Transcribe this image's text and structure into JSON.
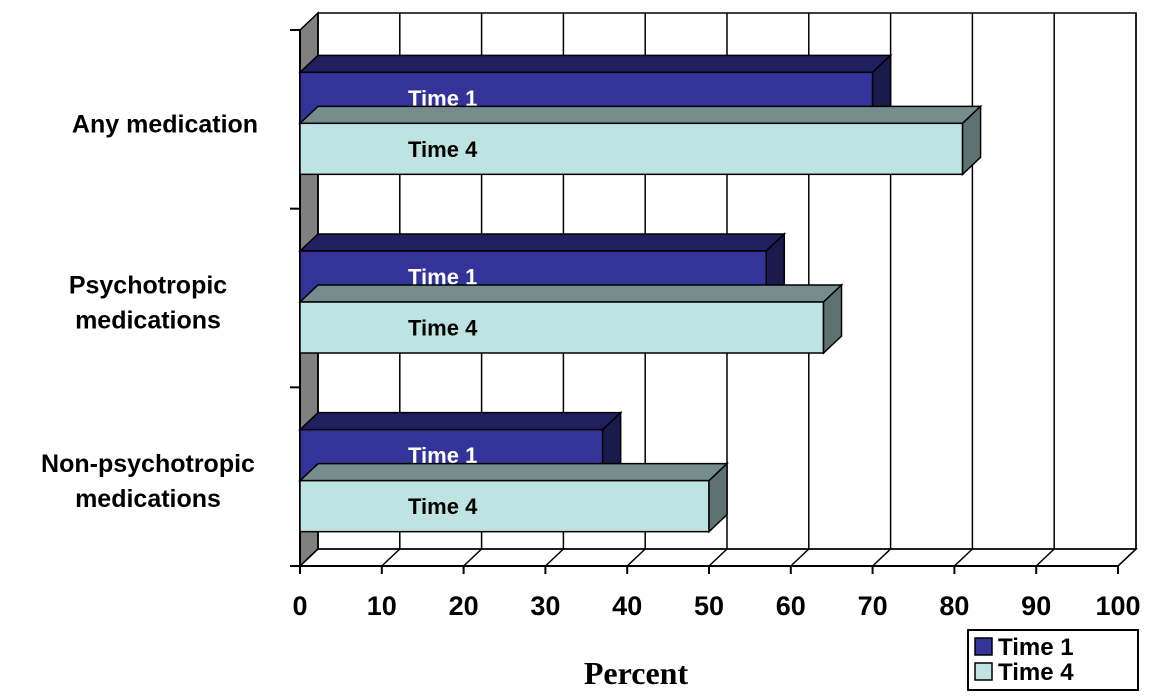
{
  "chart_data": {
    "type": "bar",
    "orientation": "horizontal",
    "style": "3d",
    "categories": [
      "Any medication",
      "Psychotropic\nmedications",
      "Non-psychotropic\nmedications"
    ],
    "series": [
      {
        "name": "Time 1",
        "values": [
          70,
          57,
          37
        ],
        "color": "#333399"
      },
      {
        "name": "Time 4",
        "values": [
          81,
          64,
          50
        ],
        "color": "#bde3e3"
      }
    ],
    "xlabel": "Percent",
    "xlim": [
      0,
      100
    ],
    "xticks": [
      "0",
      "10",
      "20",
      "30",
      "40",
      "50",
      "60",
      "70",
      "80",
      "90",
      "100"
    ],
    "grid": "vertical",
    "legend_position": "bottom-right",
    "wall_color": "#808080"
  }
}
